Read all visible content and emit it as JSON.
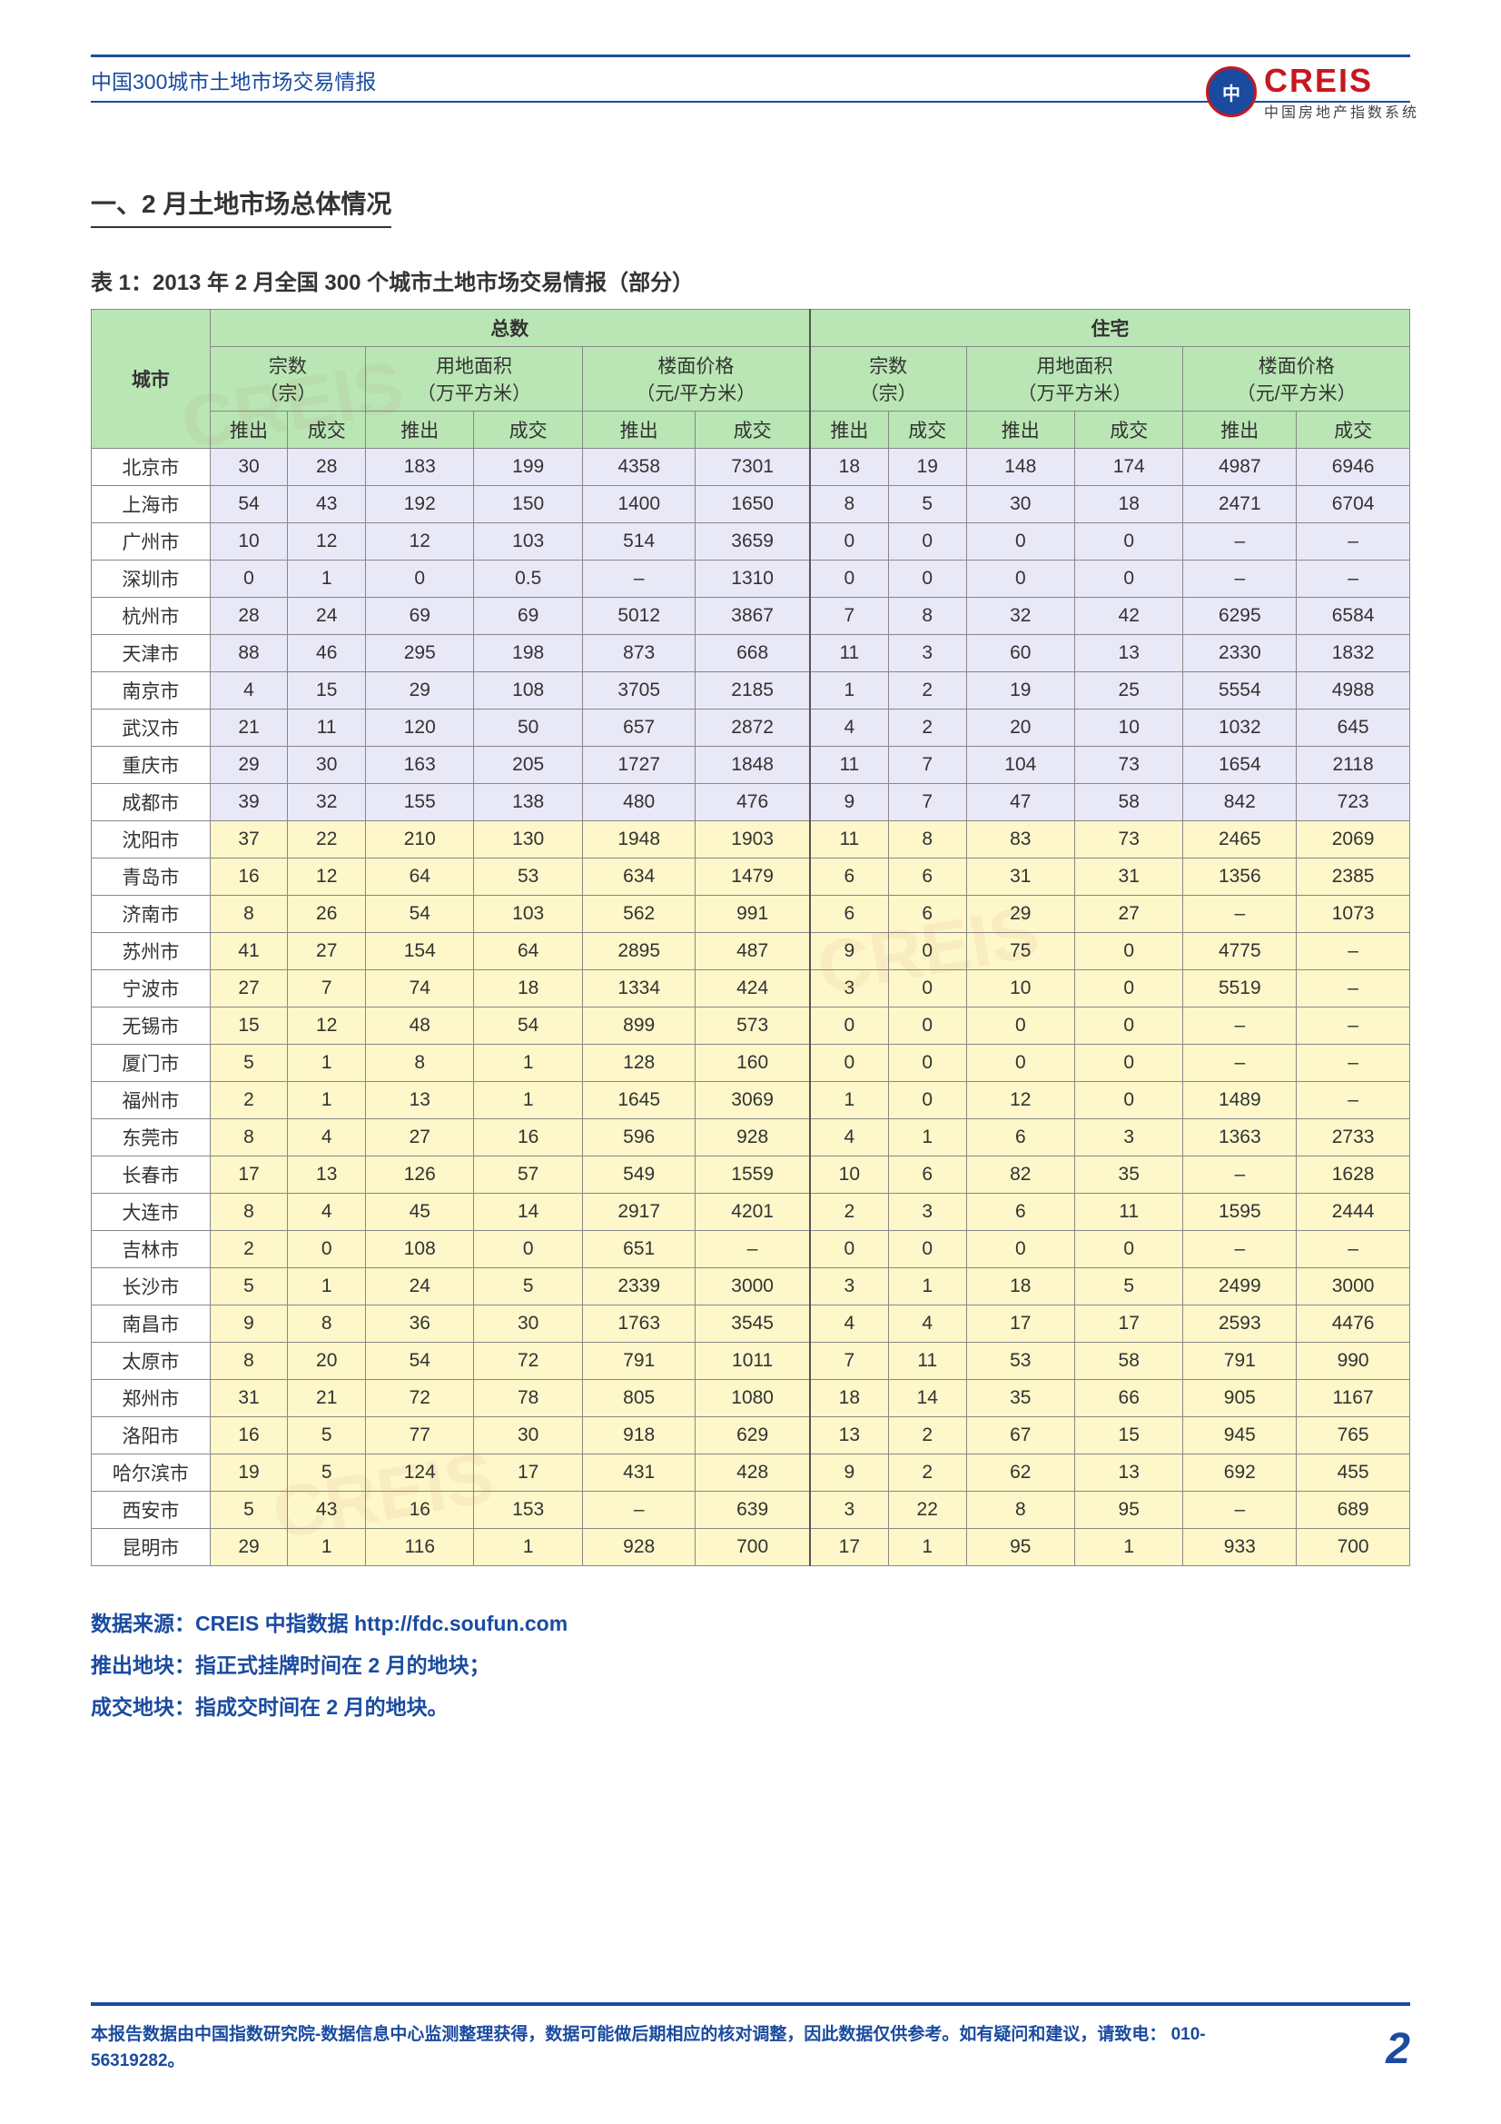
{
  "header": {
    "doc_title": "中国300城市土地市场交易情报",
    "logo_badge": "中",
    "logo_main": "CREIS",
    "logo_sub": "中国房地产指数系统"
  },
  "section": {
    "heading": "一、2 月土地市场总体情况",
    "table_caption": "表 1：2013 年 2 月全国 300 个城市土地市场交易情报（部分）"
  },
  "table": {
    "group_labels": {
      "total": "总数",
      "residential": "住宅"
    },
    "sub_labels": {
      "count": "宗数",
      "count_unit": "（宗）",
      "area": "用地面积",
      "area_unit": "（万平方米）",
      "price": "楼面价格",
      "price_unit": "（元/平方米）"
    },
    "leaf_labels": {
      "push": "推出",
      "deal": "成交"
    },
    "city_header": "城市",
    "colors": {
      "header_bg": "#b9e6b4",
      "band_a_bg": "#e8e8f7",
      "band_b_bg": "#fdf7c9",
      "rule": "#1a4ba0"
    },
    "rows": [
      {
        "band": "a",
        "city": "北京市",
        "v": [
          "30",
          "28",
          "183",
          "199",
          "4358",
          "7301",
          "18",
          "19",
          "148",
          "174",
          "4987",
          "6946"
        ]
      },
      {
        "band": "a",
        "city": "上海市",
        "v": [
          "54",
          "43",
          "192",
          "150",
          "1400",
          "1650",
          "8",
          "5",
          "30",
          "18",
          "2471",
          "6704"
        ]
      },
      {
        "band": "a",
        "city": "广州市",
        "v": [
          "10",
          "12",
          "12",
          "103",
          "514",
          "3659",
          "0",
          "0",
          "0",
          "0",
          "–",
          "–"
        ]
      },
      {
        "band": "a",
        "city": "深圳市",
        "v": [
          "0",
          "1",
          "0",
          "0.5",
          "–",
          "1310",
          "0",
          "0",
          "0",
          "0",
          "–",
          "–"
        ]
      },
      {
        "band": "a",
        "city": "杭州市",
        "v": [
          "28",
          "24",
          "69",
          "69",
          "5012",
          "3867",
          "7",
          "8",
          "32",
          "42",
          "6295",
          "6584"
        ]
      },
      {
        "band": "a",
        "city": "天津市",
        "v": [
          "88",
          "46",
          "295",
          "198",
          "873",
          "668",
          "11",
          "3",
          "60",
          "13",
          "2330",
          "1832"
        ]
      },
      {
        "band": "a",
        "city": "南京市",
        "v": [
          "4",
          "15",
          "29",
          "108",
          "3705",
          "2185",
          "1",
          "2",
          "19",
          "25",
          "5554",
          "4988"
        ]
      },
      {
        "band": "a",
        "city": "武汉市",
        "v": [
          "21",
          "11",
          "120",
          "50",
          "657",
          "2872",
          "4",
          "2",
          "20",
          "10",
          "1032",
          "645"
        ]
      },
      {
        "band": "a",
        "city": "重庆市",
        "v": [
          "29",
          "30",
          "163",
          "205",
          "1727",
          "1848",
          "11",
          "7",
          "104",
          "73",
          "1654",
          "2118"
        ]
      },
      {
        "band": "a",
        "city": "成都市",
        "v": [
          "39",
          "32",
          "155",
          "138",
          "480",
          "476",
          "9",
          "7",
          "47",
          "58",
          "842",
          "723"
        ]
      },
      {
        "band": "b",
        "city": "沈阳市",
        "v": [
          "37",
          "22",
          "210",
          "130",
          "1948",
          "1903",
          "11",
          "8",
          "83",
          "73",
          "2465",
          "2069"
        ]
      },
      {
        "band": "b",
        "city": "青岛市",
        "v": [
          "16",
          "12",
          "64",
          "53",
          "634",
          "1479",
          "6",
          "6",
          "31",
          "31",
          "1356",
          "2385"
        ]
      },
      {
        "band": "b",
        "city": "济南市",
        "v": [
          "8",
          "26",
          "54",
          "103",
          "562",
          "991",
          "6",
          "6",
          "29",
          "27",
          "–",
          "1073"
        ]
      },
      {
        "band": "b",
        "city": "苏州市",
        "v": [
          "41",
          "27",
          "154",
          "64",
          "2895",
          "487",
          "9",
          "0",
          "75",
          "0",
          "4775",
          "–"
        ]
      },
      {
        "band": "b",
        "city": "宁波市",
        "v": [
          "27",
          "7",
          "74",
          "18",
          "1334",
          "424",
          "3",
          "0",
          "10",
          "0",
          "5519",
          "–"
        ]
      },
      {
        "band": "b",
        "city": "无锡市",
        "v": [
          "15",
          "12",
          "48",
          "54",
          "899",
          "573",
          "0",
          "0",
          "0",
          "0",
          "–",
          "–"
        ]
      },
      {
        "band": "b",
        "city": "厦门市",
        "v": [
          "5",
          "1",
          "8",
          "1",
          "128",
          "160",
          "0",
          "0",
          "0",
          "0",
          "–",
          "–"
        ]
      },
      {
        "band": "b",
        "city": "福州市",
        "v": [
          "2",
          "1",
          "13",
          "1",
          "1645",
          "3069",
          "1",
          "0",
          "12",
          "0",
          "1489",
          "–"
        ]
      },
      {
        "band": "b",
        "city": "东莞市",
        "v": [
          "8",
          "4",
          "27",
          "16",
          "596",
          "928",
          "4",
          "1",
          "6",
          "3",
          "1363",
          "2733"
        ]
      },
      {
        "band": "b",
        "city": "长春市",
        "v": [
          "17",
          "13",
          "126",
          "57",
          "549",
          "1559",
          "10",
          "6",
          "82",
          "35",
          "–",
          "1628"
        ]
      },
      {
        "band": "b",
        "city": "大连市",
        "v": [
          "8",
          "4",
          "45",
          "14",
          "2917",
          "4201",
          "2",
          "3",
          "6",
          "11",
          "1595",
          "2444"
        ]
      },
      {
        "band": "b",
        "city": "吉林市",
        "v": [
          "2",
          "0",
          "108",
          "0",
          "651",
          "–",
          "0",
          "0",
          "0",
          "0",
          "–",
          "–"
        ]
      },
      {
        "band": "b",
        "city": "长沙市",
        "v": [
          "5",
          "1",
          "24",
          "5",
          "2339",
          "3000",
          "3",
          "1",
          "18",
          "5",
          "2499",
          "3000"
        ]
      },
      {
        "band": "b",
        "city": "南昌市",
        "v": [
          "9",
          "8",
          "36",
          "30",
          "1763",
          "3545",
          "4",
          "4",
          "17",
          "17",
          "2593",
          "4476"
        ]
      },
      {
        "band": "b",
        "city": "太原市",
        "v": [
          "8",
          "20",
          "54",
          "72",
          "791",
          "1011",
          "7",
          "11",
          "53",
          "58",
          "791",
          "990"
        ]
      },
      {
        "band": "b",
        "city": "郑州市",
        "v": [
          "31",
          "21",
          "72",
          "78",
          "805",
          "1080",
          "18",
          "14",
          "35",
          "66",
          "905",
          "1167"
        ]
      },
      {
        "band": "b",
        "city": "洛阳市",
        "v": [
          "16",
          "5",
          "77",
          "30",
          "918",
          "629",
          "13",
          "2",
          "67",
          "15",
          "945",
          "765"
        ]
      },
      {
        "band": "b",
        "city": "哈尔滨市",
        "v": [
          "19",
          "5",
          "124",
          "17",
          "431",
          "428",
          "9",
          "2",
          "62",
          "13",
          "692",
          "455"
        ]
      },
      {
        "band": "b",
        "city": "西安市",
        "v": [
          "5",
          "43",
          "16",
          "153",
          "–",
          "639",
          "3",
          "22",
          "8",
          "95",
          "–",
          "689"
        ]
      },
      {
        "band": "b",
        "city": "昆明市",
        "v": [
          "29",
          "1",
          "116",
          "1",
          "928",
          "700",
          "17",
          "1",
          "95",
          "1",
          "933",
          "700"
        ]
      }
    ]
  },
  "notes": {
    "line1": "数据来源：CREIS 中指数据 http://fdc.soufun.com",
    "line2": "推出地块：指正式挂牌时间在 2 月的地块；",
    "line3": "成交地块：指成交时间在 2 月的地块。"
  },
  "footer": {
    "text": "本报告数据由中国指数研究院-数据信息中心监测整理获得，数据可能做后期相应的核对调整，因此数据仅供参考。如有疑问和建议，请致电： 010-56319282。",
    "page": "2"
  }
}
